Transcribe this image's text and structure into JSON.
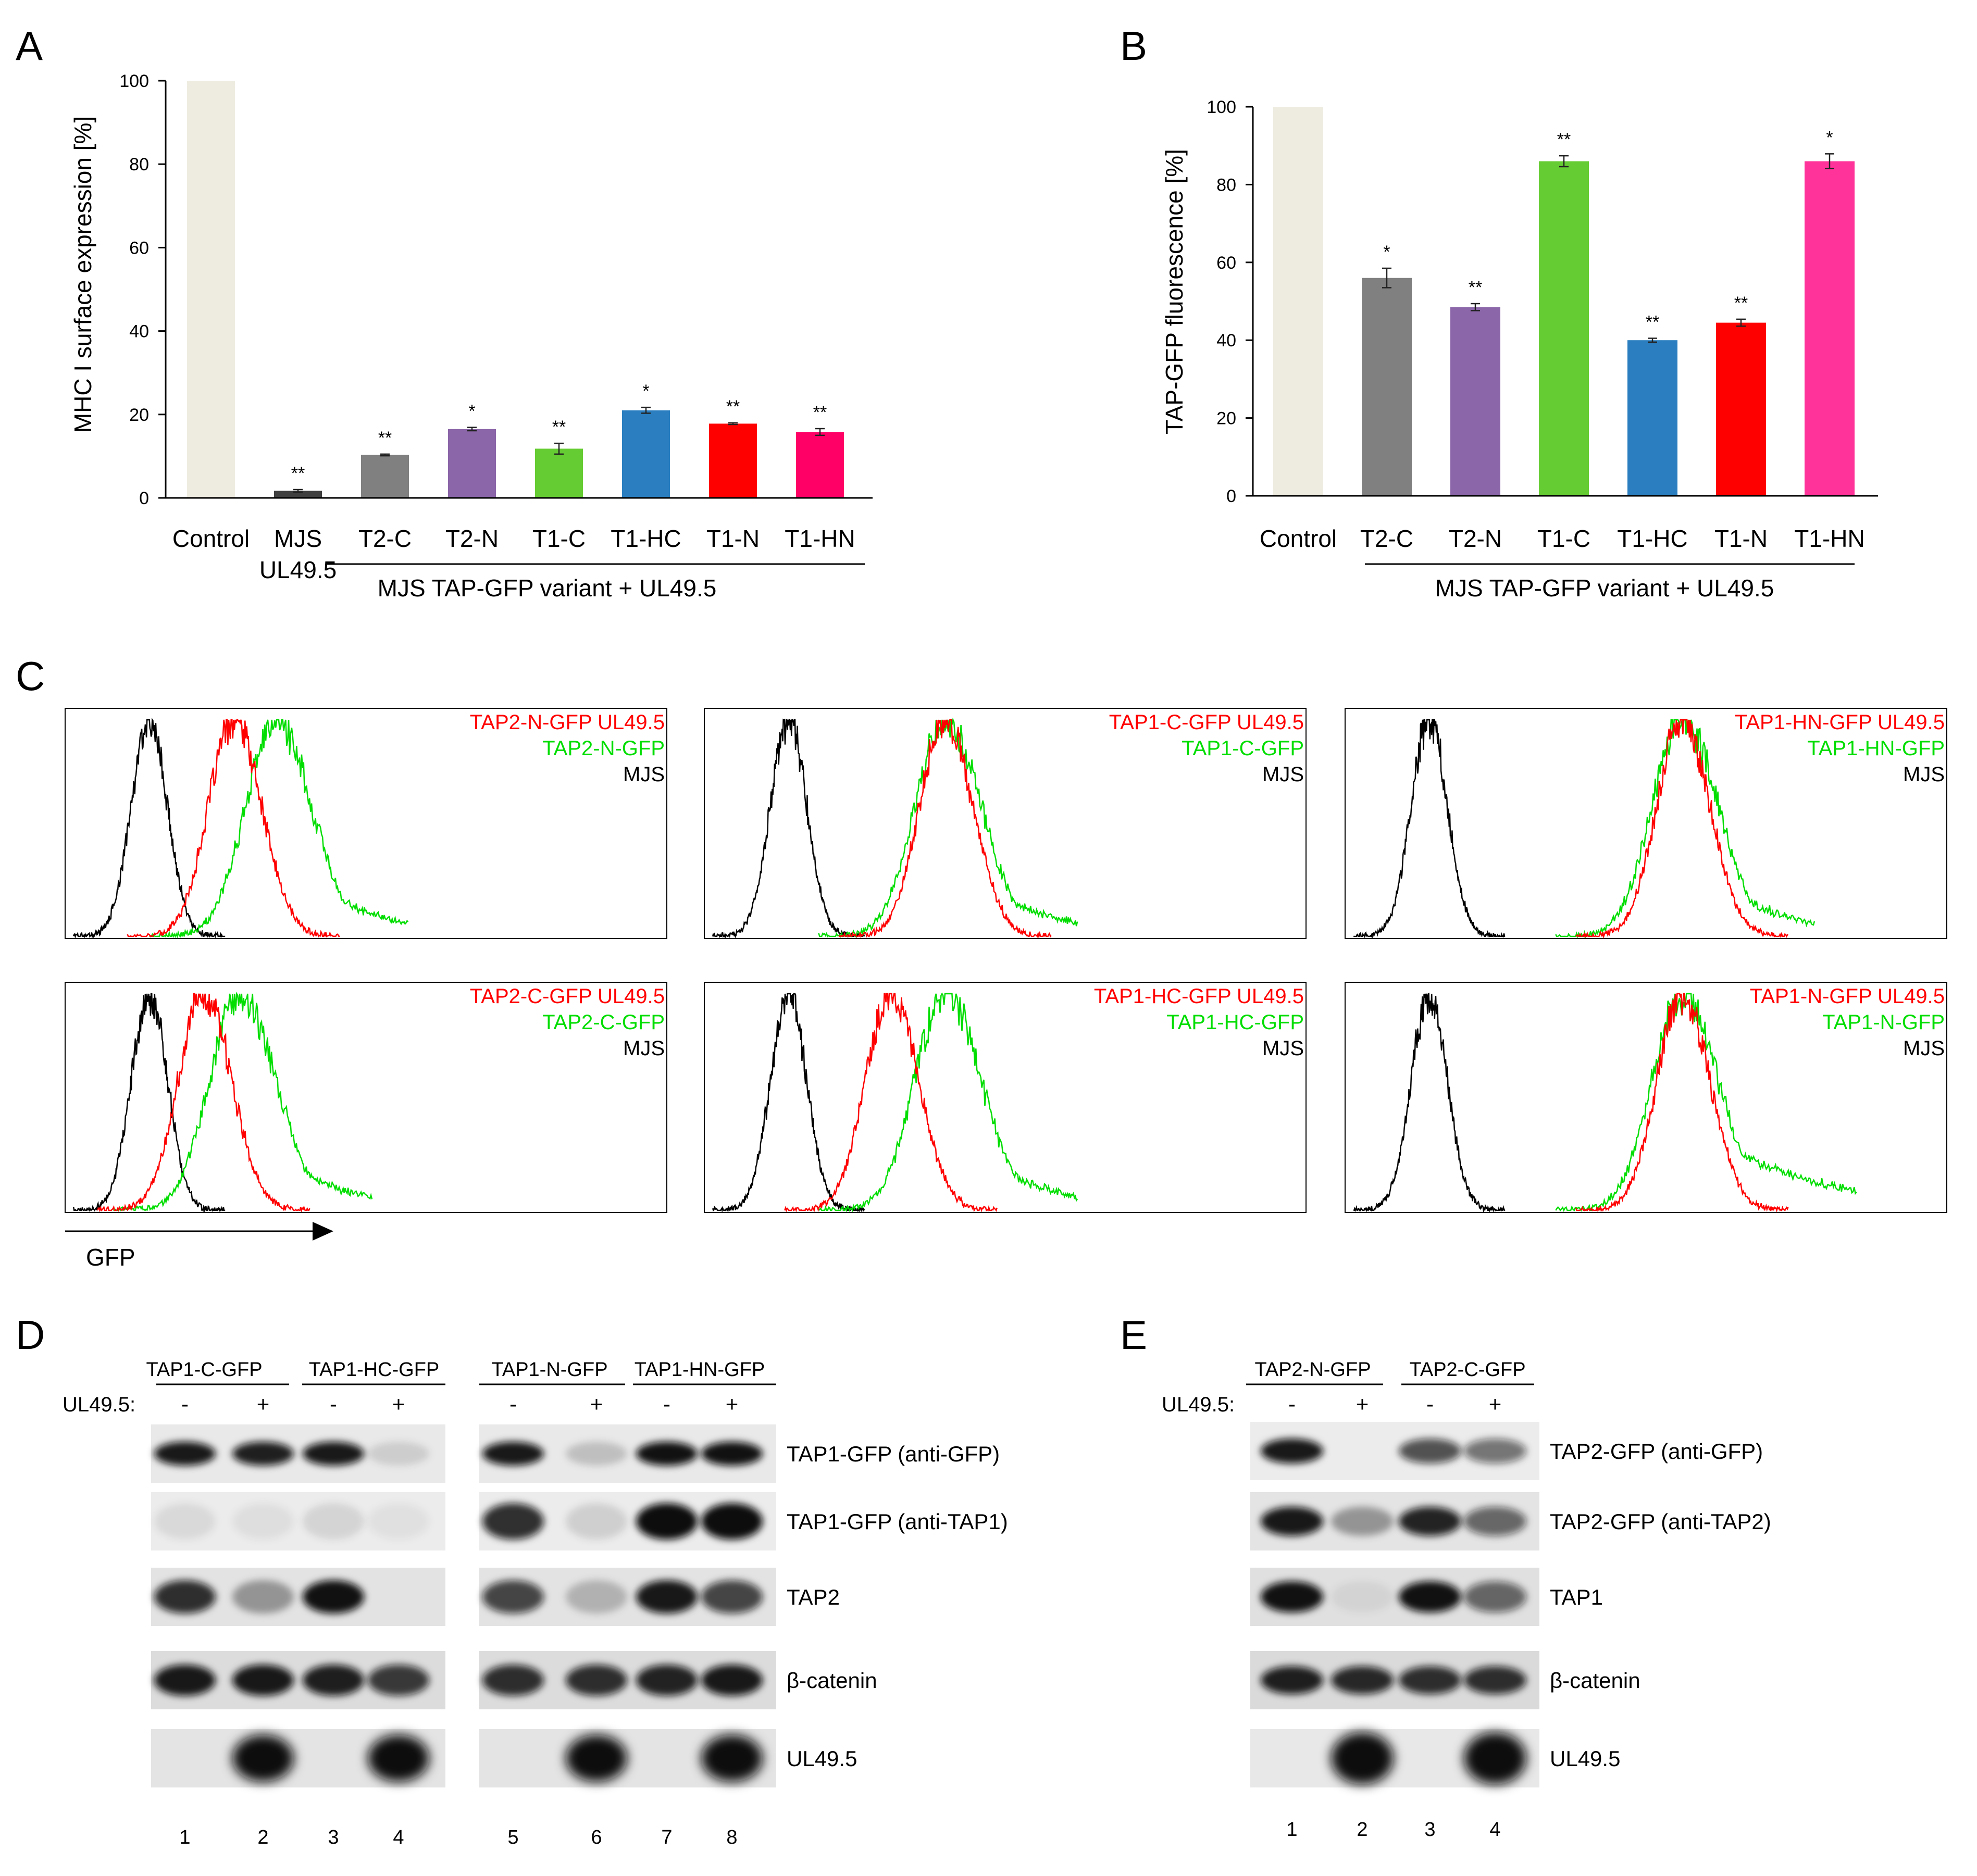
{
  "panels": {
    "A": "A",
    "B": "B",
    "C": "C",
    "D": "D",
    "E": "E"
  },
  "colors": {
    "control": "#EEEBE0",
    "mjs": "#404040",
    "t2c": "#808080",
    "t2n": "#8B66A8",
    "t1c": "#66CC33",
    "t1hc": "#2B7FC0",
    "t1n": "#FF0000",
    "t1hn_a": "#FF0066",
    "t1hn_b": "#FF3399",
    "hist_red": "#FF0000",
    "hist_green": "#00DD00",
    "hist_black": "#000000"
  },
  "chart_data": [
    {
      "id": "A",
      "type": "bar",
      "ylabel": "MHC I surface expression [%]",
      "xlabel": "MJS TAP-GFP variant + UL49.5",
      "ylim": [
        0,
        100
      ],
      "yticks": [
        "0",
        "20",
        "40",
        "60",
        "80",
        "100"
      ],
      "categories": [
        {
          "label": "Control",
          "label2": ""
        },
        {
          "label": "MJS",
          "label2": "UL49.5"
        },
        {
          "label": "T2-C",
          "label2": ""
        },
        {
          "label": "T2-N",
          "label2": ""
        },
        {
          "label": "T1-C",
          "label2": ""
        },
        {
          "label": "T1-HC",
          "label2": ""
        },
        {
          "label": "T1-N",
          "label2": ""
        },
        {
          "label": "T1-HN",
          "label2": ""
        }
      ],
      "values": [
        100,
        1.7,
        10.3,
        16.5,
        11.8,
        21.0,
        17.8,
        15.8
      ],
      "errors": [
        0,
        0.3,
        0.2,
        0.4,
        1.3,
        0.7,
        0.2,
        0.8
      ],
      "significance": [
        "",
        "**",
        "**",
        "*",
        "**",
        "*",
        "**",
        "**"
      ],
      "colors": [
        "#EEEBE0",
        "#404040",
        "#808080",
        "#8B66A8",
        "#66CC33",
        "#2B7FC0",
        "#FF0000",
        "#FF0066"
      ]
    },
    {
      "id": "B",
      "type": "bar",
      "ylabel": "TAP-GFP fluorescence [%]",
      "xlabel": "MJS TAP-GFP variant + UL49.5",
      "ylim": [
        0,
        100
      ],
      "yticks": [
        "0",
        "20",
        "40",
        "60",
        "80",
        "100"
      ],
      "categories": [
        {
          "label": "Control",
          "label2": ""
        },
        {
          "label": "T2-C",
          "label2": ""
        },
        {
          "label": "T2-N",
          "label2": ""
        },
        {
          "label": "T1-C",
          "label2": ""
        },
        {
          "label": "T1-HC",
          "label2": ""
        },
        {
          "label": "T1-N",
          "label2": ""
        },
        {
          "label": "T1-HN",
          "label2": ""
        }
      ],
      "values": [
        100,
        56,
        48.5,
        86,
        40,
        44.5,
        86
      ],
      "errors": [
        0,
        2.5,
        0.9,
        1.4,
        0.5,
        0.9,
        1.9
      ],
      "significance": [
        "",
        "*",
        "**",
        "**",
        "**",
        "**",
        "*"
      ],
      "colors": [
        "#EEEBE0",
        "#808080",
        "#8B66A8",
        "#66CC33",
        "#2B7FC0",
        "#FF0000",
        "#FF3399"
      ]
    },
    {
      "id": "C",
      "type": "histogram",
      "xlabel": "GFP",
      "series_note": "each panel: black = MJS, green = GFP construct, red = GFP construct + UL49.5",
      "panels": [
        {
          "labels": [
            "TAP2-N-GFP UL49.5",
            "TAP2-N-GFP",
            "MJS"
          ],
          "peaks": [
            0.14,
            0.28,
            0.35
          ]
        },
        {
          "labels": [
            "TAP1-C-GFP UL49.5",
            "TAP1-C-GFP",
            "MJS"
          ],
          "peaks": [
            0.14,
            0.4,
            0.4
          ]
        },
        {
          "labels": [
            "TAP1-HN-GFP UL49.5",
            "TAP1-HN-GFP",
            "MJS"
          ],
          "peaks": [
            0.14,
            0.56,
            0.56
          ]
        },
        {
          "labels": [
            "TAP2-C-GFP UL49.5",
            "TAP2-C-GFP",
            "MJS"
          ],
          "peaks": [
            0.14,
            0.23,
            0.29
          ]
        },
        {
          "labels": [
            "TAP1-HC-GFP UL49.5",
            "TAP1-HC-GFP",
            "MJS"
          ],
          "peaks": [
            0.14,
            0.31,
            0.4
          ]
        },
        {
          "labels": [
            "TAP1-N-GFP UL49.5",
            "TAP1-N-GFP",
            "MJS"
          ],
          "peaks": [
            0.14,
            0.56,
            0.56
          ]
        }
      ]
    }
  ],
  "blots": {
    "D": {
      "ul_label": "UL49.5:",
      "groups": [
        "TAP1-C-GFP",
        "TAP1-HC-GFP",
        "TAP1-N-GFP",
        "TAP1-HN-GFP"
      ],
      "signs": [
        "-",
        "+",
        "-",
        "+",
        "-",
        "+",
        "-",
        "+"
      ],
      "row_labels": [
        "TAP1-GFP (anti-GFP)",
        "TAP1-GFP (anti-TAP1)",
        "TAP2",
        "β-catenin",
        "UL49.5"
      ],
      "lanes": [
        "1",
        "2",
        "3",
        "4",
        "5",
        "6",
        "7",
        "8"
      ]
    },
    "E": {
      "ul_label": "UL49.5:",
      "groups": [
        "TAP2-N-GFP",
        "TAP2-C-GFP"
      ],
      "signs": [
        "-",
        "+",
        "-",
        "+"
      ],
      "row_labels": [
        "TAP2-GFP (anti-GFP)",
        "TAP2-GFP (anti-TAP2)",
        "TAP1",
        "β-catenin",
        "UL49.5"
      ],
      "lanes": [
        "1",
        "2",
        "3",
        "4"
      ]
    }
  }
}
